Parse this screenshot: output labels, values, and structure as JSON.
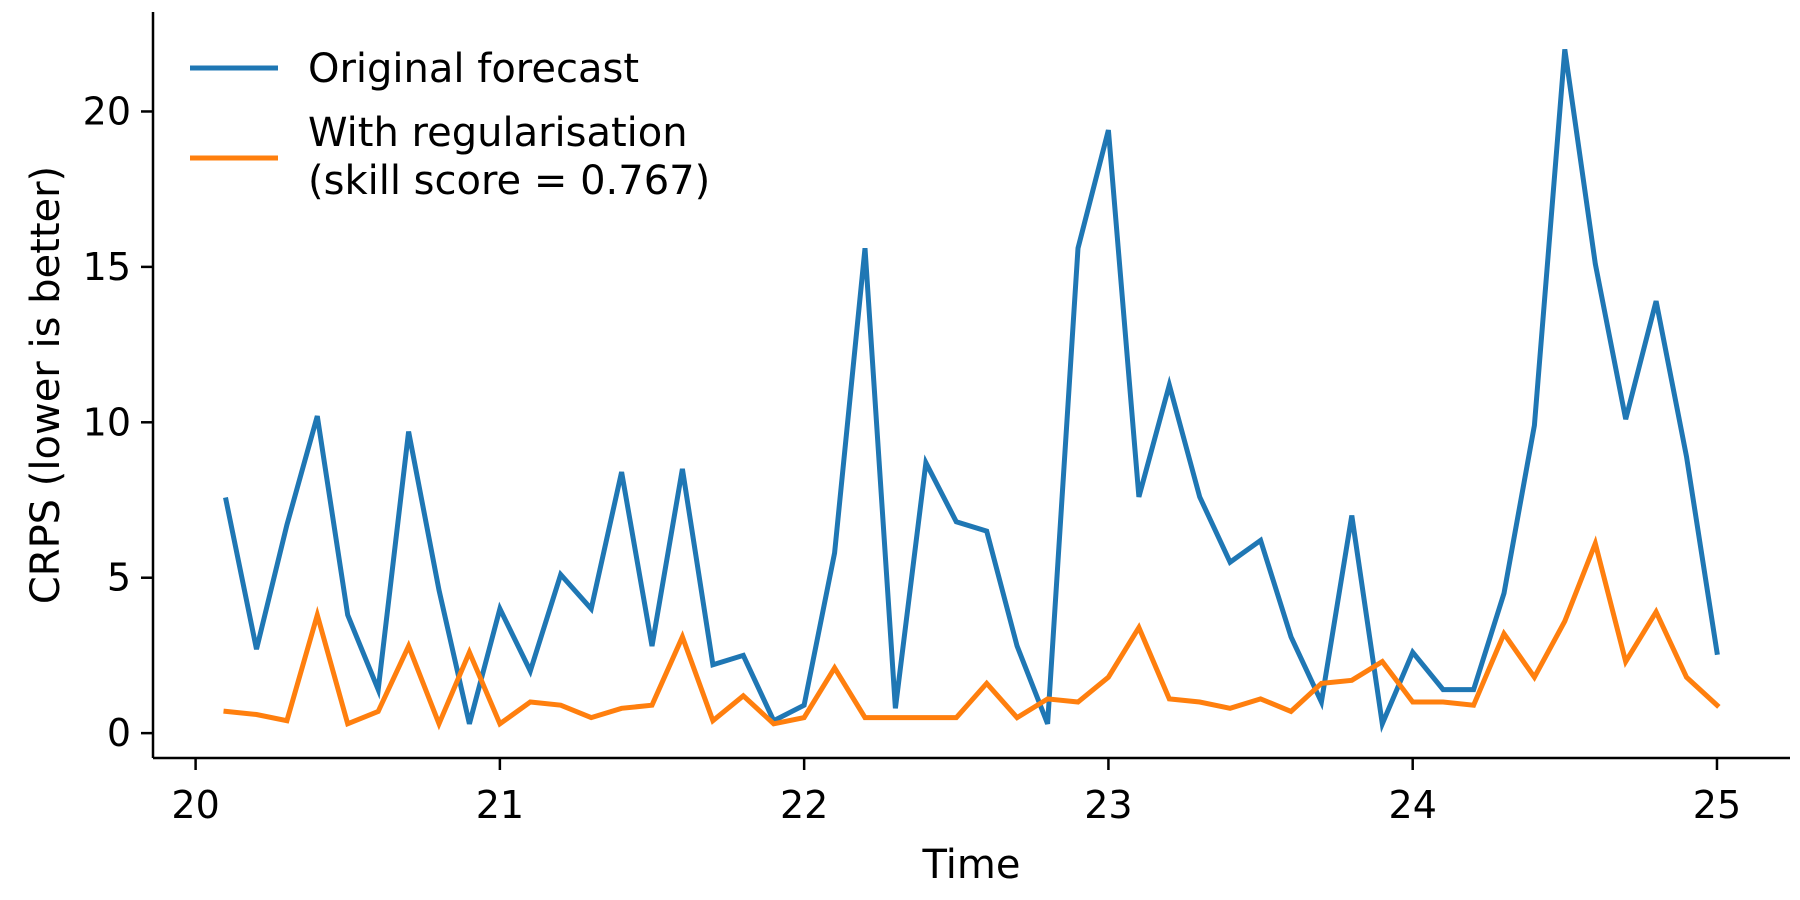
{
  "chart_data": {
    "type": "line",
    "xlabel": "Time",
    "ylabel": "CRPS (lower is better)",
    "xlim": [
      19.86,
      25.24
    ],
    "ylim": [
      -0.8,
      23.2
    ],
    "xticks": [
      20,
      21,
      22,
      23,
      24,
      25
    ],
    "xtick_labels": [
      "20",
      "21",
      "22",
      "23",
      "24",
      "25"
    ],
    "yticks": [
      0,
      5,
      10,
      15,
      20
    ],
    "ytick_labels": [
      "0",
      "5",
      "10",
      "15",
      "20"
    ],
    "grid": false,
    "legend_placement": "top-left",
    "x": [
      20.1,
      20.2,
      20.3,
      20.4,
      20.5,
      20.6,
      20.7,
      20.8,
      20.9,
      21.0,
      21.1,
      21.2,
      21.3,
      21.4,
      21.5,
      21.6,
      21.7,
      21.8,
      21.9,
      22.0,
      22.1,
      22.2,
      22.3,
      22.4,
      22.5,
      22.6,
      22.7,
      22.8,
      22.9,
      23.0,
      23.1,
      23.2,
      23.3,
      23.4,
      23.5,
      23.6,
      23.7,
      23.8,
      23.9,
      24.0,
      24.1,
      24.2,
      24.3,
      24.4,
      24.5,
      24.6,
      24.7,
      24.8,
      24.9,
      25.0
    ],
    "series": [
      {
        "name": "Original forecast",
        "color": "#1f77b4",
        "values": [
          7.5,
          2.7,
          6.7,
          10.2,
          3.8,
          1.4,
          9.7,
          4.6,
          0.3,
          4.0,
          2.0,
          5.1,
          4.0,
          8.4,
          2.8,
          8.5,
          2.2,
          2.5,
          0.4,
          0.9,
          5.8,
          15.6,
          0.8,
          8.7,
          6.8,
          6.5,
          2.8,
          0.3,
          15.6,
          19.4,
          7.6,
          11.2,
          7.6,
          5.5,
          6.2,
          3.1,
          1.0,
          7.0,
          0.3,
          2.6,
          1.4,
          1.4,
          4.5,
          9.9,
          22.0,
          15.1,
          10.1,
          13.9,
          8.9,
          2.6
        ]
      },
      {
        "name": "With regularisation\n(skill score = 0.767)",
        "name_lines": [
          "With regularisation",
          "(skill score = 0.767)"
        ],
        "color": "#ff7f0e",
        "values": [
          0.7,
          0.6,
          0.4,
          3.8,
          0.3,
          0.7,
          2.8,
          0.3,
          2.6,
          0.3,
          1.0,
          0.9,
          0.5,
          0.8,
          0.9,
          3.1,
          0.4,
          1.2,
          0.3,
          0.5,
          2.1,
          0.5,
          0.5,
          0.5,
          0.5,
          1.6,
          0.5,
          1.1,
          1.0,
          1.8,
          3.4,
          1.1,
          1.0,
          0.8,
          1.1,
          0.7,
          1.6,
          1.7,
          2.3,
          1.0,
          1.0,
          0.9,
          3.2,
          1.8,
          3.6,
          6.1,
          2.3,
          3.9,
          1.8,
          0.9
        ]
      }
    ]
  }
}
